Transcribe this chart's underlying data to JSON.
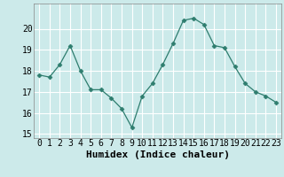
{
  "x": [
    0,
    1,
    2,
    3,
    4,
    5,
    6,
    7,
    8,
    9,
    10,
    11,
    12,
    13,
    14,
    15,
    16,
    17,
    18,
    19,
    20,
    21,
    22,
    23
  ],
  "y": [
    17.8,
    17.7,
    18.3,
    19.2,
    18.0,
    17.1,
    17.1,
    16.7,
    16.2,
    15.3,
    16.8,
    17.4,
    18.3,
    19.3,
    20.4,
    20.5,
    20.2,
    19.2,
    19.1,
    18.2,
    17.4,
    17.0,
    16.8,
    16.5
  ],
  "line_color": "#2e7d6e",
  "marker": "D",
  "marker_size": 2.5,
  "bg_color": "#cceaea",
  "grid_color": "#ffffff",
  "grid_minor_color": "#e8f8f8",
  "xlabel": "Humidex (Indice chaleur)",
  "xlabel_fontsize": 8,
  "tick_fontsize": 7,
  "ylim": [
    14.8,
    21.2
  ],
  "yticks": [
    15,
    16,
    17,
    18,
    19,
    20
  ],
  "xlim": [
    -0.5,
    23.5
  ],
  "xticks": [
    0,
    1,
    2,
    3,
    4,
    5,
    6,
    7,
    8,
    9,
    10,
    11,
    12,
    13,
    14,
    15,
    16,
    17,
    18,
    19,
    20,
    21,
    22,
    23
  ]
}
